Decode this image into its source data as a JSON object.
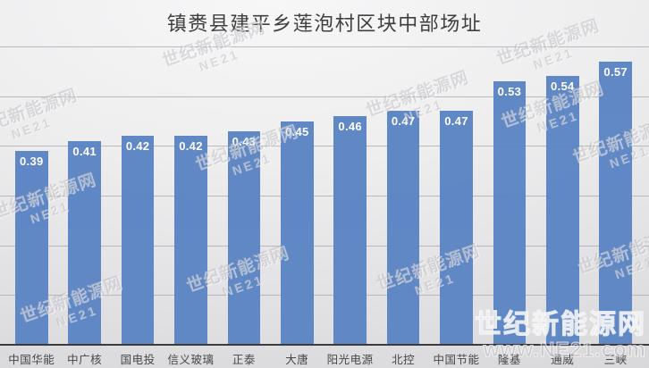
{
  "title": "镇赉县建平乡莲泡村区块中部场址",
  "watermark": {
    "tile_line1": "世纪新能源网",
    "tile_line2": "NE21",
    "corner_line1": "世纪新能源网",
    "corner_line2": "www.NE21.com"
  },
  "chart_data": {
    "type": "bar",
    "title": "镇赉县建平乡莲泡村区块中部场址",
    "categories": [
      "中国华能",
      "中广核",
      "国电投",
      "信义玻璃",
      "正泰",
      "大唐",
      "阳光电源",
      "北控",
      "中国节能",
      "隆基",
      "通威",
      "三峡"
    ],
    "values": [
      0.39,
      0.41,
      0.42,
      0.42,
      0.43,
      0.45,
      0.46,
      0.47,
      0.47,
      0.53,
      0.54,
      0.57
    ],
    "value_labels": [
      "0.39",
      "0.41",
      "0.42",
      "0.42",
      "0.43",
      "0.45",
      "0.46",
      "0.47",
      "0.47",
      "0.53",
      "0.54",
      "0.57"
    ],
    "xlabel": "",
    "ylabel": "",
    "ylim": [
      0,
      0.6
    ],
    "grid_step": 0.1,
    "grid": true,
    "legend_position": "none",
    "bar_color": "#5b84c4",
    "value_label_color": "#ffffff",
    "axis_line_color": "#3c3c3e"
  }
}
